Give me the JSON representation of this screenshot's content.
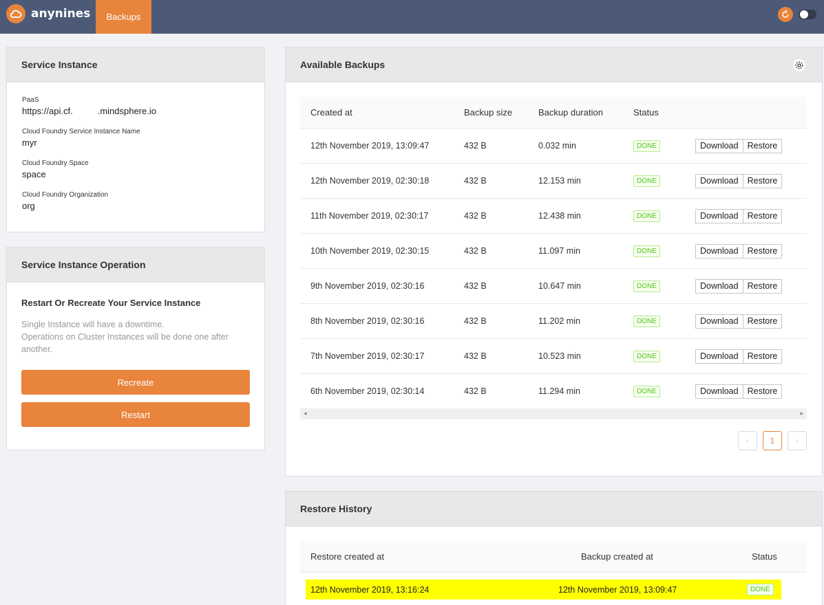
{
  "app": {
    "brand": "anynines",
    "nav_tab": "Backups"
  },
  "service_instance": {
    "title": "Service Instance",
    "fields": [
      {
        "label": "PaaS",
        "value_a": "https://api.cf.",
        "value_b": ".mindsphere.io"
      },
      {
        "label": "Cloud Foundry Service Instance Name",
        "value": "myr"
      },
      {
        "label": "Cloud Foundry Space",
        "value": "space"
      },
      {
        "label": "Cloud Foundry Organization",
        "value": "org"
      }
    ]
  },
  "operation": {
    "title": "Service Instance Operation",
    "subtitle": "Restart Or Recreate Your Service Instance",
    "desc_line1": "Single Instance will have a downtime.",
    "desc_line2": "Operations on Cluster Instances will be done one after another.",
    "recreate_label": "Recreate",
    "restart_label": "Restart"
  },
  "backups": {
    "title": "Available Backups",
    "columns": {
      "created": "Created at",
      "size": "Backup size",
      "duration": "Backup duration",
      "status": "Status"
    },
    "download_label": "Download",
    "restore_label": "Restore",
    "rows": [
      {
        "created": "12th November 2019, 13:09:47",
        "size": "432 B",
        "duration": "0.032 min",
        "status": "DONE"
      },
      {
        "created": "12th November 2019, 02:30:18",
        "size": "432 B",
        "duration": "12.153 min",
        "status": "DONE"
      },
      {
        "created": "11th November 2019, 02:30:17",
        "size": "432 B",
        "duration": "12.438 min",
        "status": "DONE"
      },
      {
        "created": "10th November 2019, 02:30:15",
        "size": "432 B",
        "duration": "11.097 min",
        "status": "DONE"
      },
      {
        "created": "9th November 2019, 02:30:16",
        "size": "432 B",
        "duration": "10.647 min",
        "status": "DONE"
      },
      {
        "created": "8th November 2019, 02:30:16",
        "size": "432 B",
        "duration": "11.202 min",
        "status": "DONE"
      },
      {
        "created": "7th November 2019, 02:30:17",
        "size": "432 B",
        "duration": "10.523 min",
        "status": "DONE"
      },
      {
        "created": "6th November 2019, 02:30:14",
        "size": "432 B",
        "duration": "11.294 min",
        "status": "DONE"
      }
    ],
    "pagination": {
      "current": "1",
      "prev": "‹",
      "next": "›"
    }
  },
  "restore_history": {
    "title": "Restore History",
    "columns": {
      "restore_created": "Restore created at",
      "backup_created": "Backup created at",
      "status": "Status"
    },
    "rows": [
      {
        "restore_created": "12th November 2019, 13:16:24",
        "backup_created": "12th November 2019, 13:09:47",
        "status": "DONE"
      }
    ]
  },
  "colors": {
    "accent": "#e8843c",
    "topbar": "#4c5a78",
    "highlight": "#ffff00",
    "done": "#52c41a"
  }
}
